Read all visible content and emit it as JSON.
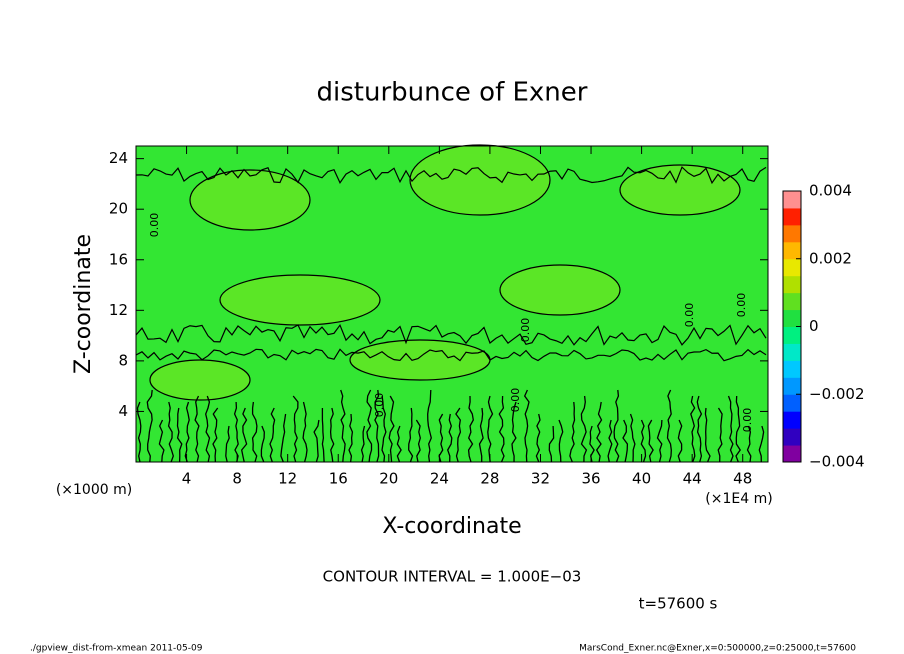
{
  "chart_data": {
    "type": "contour",
    "title": "disturbunce of Exner",
    "x_label": "X-coordinate",
    "y_label": "Z-coordinate",
    "x_unit_label": "(×1E4 m)",
    "y_unit_label": "(×1000 m)",
    "xlim": [
      0,
      50
    ],
    "ylim": [
      0,
      25
    ],
    "xticks": [
      4,
      8,
      12,
      16,
      20,
      24,
      28,
      32,
      36,
      40,
      44,
      48
    ],
    "yticks": [
      4,
      8,
      12,
      16,
      20,
      24
    ],
    "fill_color": "#33e633",
    "contour_label": "0.00",
    "colorbar": {
      "lim": [
        -0.004,
        0.004
      ],
      "ticks": [
        {
          "value": -0.004,
          "label": "−0.004"
        },
        {
          "value": -0.002,
          "label": "−0.002"
        },
        0,
        0.002,
        0.004
      ],
      "colors": [
        "#8000a0",
        "#3000c0",
        "#0000ff",
        "#0060ff",
        "#0098ff",
        "#00c8ff",
        "#00e8c8",
        "#00f080",
        "#20e040",
        "#60e020",
        "#b0e000",
        "#e8e800",
        "#ffb800",
        "#ff7800",
        "#ff2000",
        "#ff9090"
      ]
    },
    "annotations": {
      "contour_interval": "CONTOUR INTERVAL = 1.000E−03",
      "time": "t=57600 s",
      "footer_left": "./gpview_dist-from-xmean  2011-05-09",
      "footer_right": "MarsCond_Exner.nc@Exner,x=0:500000,z=0:25000,t=57600"
    }
  }
}
